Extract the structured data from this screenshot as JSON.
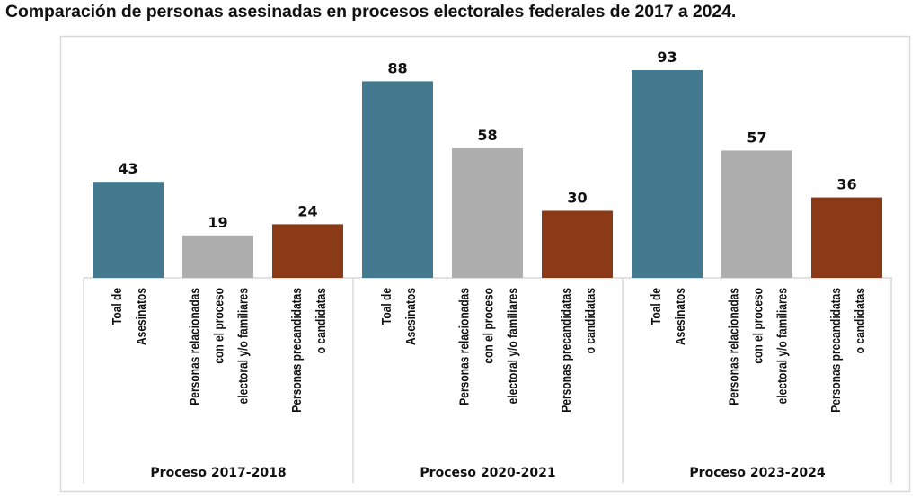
{
  "chart_data": {
    "type": "bar",
    "title": "Comparación de personas asesinadas en procesos electorales federales de 2017 a 2024.",
    "groups": [
      "Proceso 2017-2018",
      "Proceso 2020-2021",
      "Proceso 2023-2024"
    ],
    "categories": [
      [
        "Toal de",
        "Asesinatos"
      ],
      [
        "Personas relacionadas",
        "con el proceso",
        "electoral y/o familiares"
      ],
      [
        "Personas precandidatas",
        "o candidatas"
      ]
    ],
    "values": [
      [
        43,
        19,
        24
      ],
      [
        88,
        58,
        30
      ],
      [
        93,
        57,
        36
      ]
    ],
    "colors": [
      "#437A8F",
      "#AEAEAE",
      "#8B3A17"
    ],
    "ylim": [
      0,
      100
    ],
    "grid": false,
    "legend": "none",
    "data_labels": true
  }
}
